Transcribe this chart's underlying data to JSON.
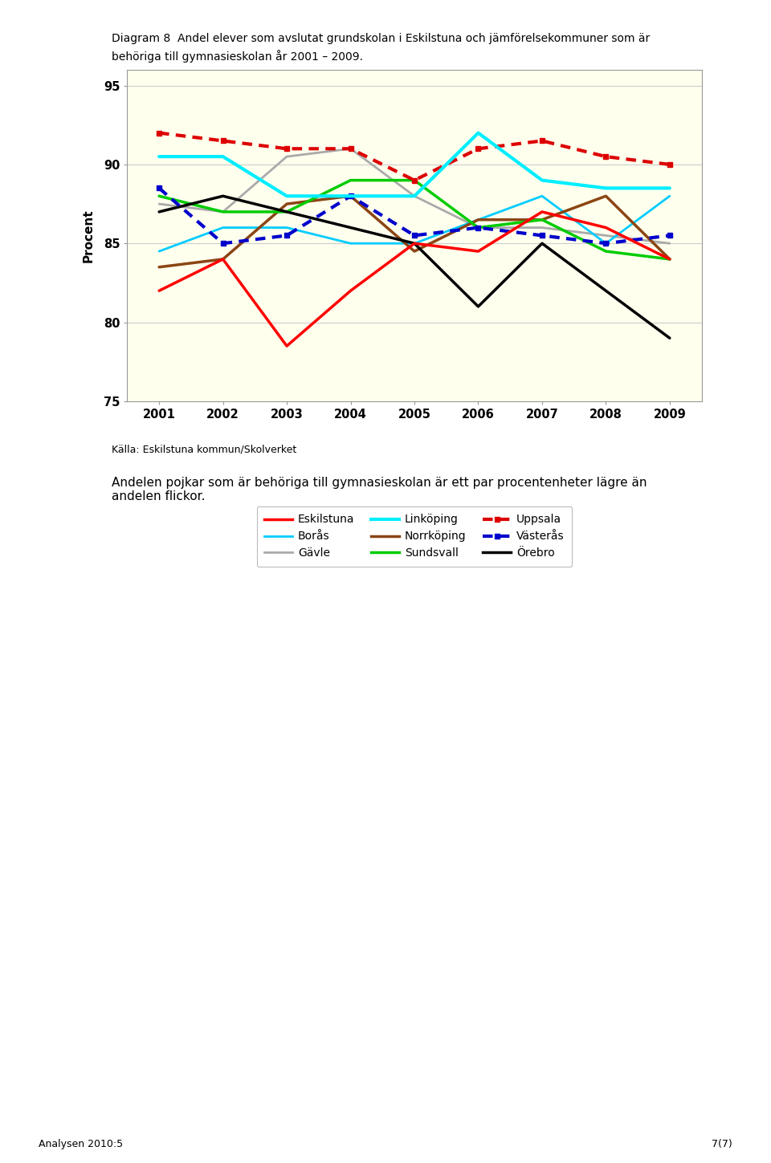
{
  "title_line1": "Diagram 8  Andel elever som avslutat grundskolan i Eskilstuna och jämförelsekommuner som är",
  "title_line2": "behöriga till gymnasieskolan år 2001 – 2009.",
  "ylabel": "Procent",
  "years": [
    2001,
    2002,
    2003,
    2004,
    2005,
    2006,
    2007,
    2008,
    2009
  ],
  "ylim": [
    75,
    96
  ],
  "yticks": [
    75,
    80,
    85,
    90,
    95
  ],
  "series": [
    {
      "name": "Eskilstuna",
      "data": [
        82.0,
        84.0,
        78.5,
        82.0,
        85.0,
        84.5,
        87.0,
        86.0,
        84.0
      ],
      "color": "#ff0000",
      "linestyle": "solid",
      "linewidth": 2.5
    },
    {
      "name": "Borås",
      "data": [
        84.5,
        86.0,
        86.0,
        85.0,
        85.0,
        86.5,
        88.0,
        85.0,
        88.0
      ],
      "color": "#00ccff",
      "linestyle": "solid",
      "linewidth": 2.0
    },
    {
      "name": "Gävle",
      "data": [
        87.5,
        87.0,
        90.5,
        91.0,
        88.0,
        86.0,
        86.0,
        85.5,
        85.0
      ],
      "color": "#aaaaaa",
      "linestyle": "solid",
      "linewidth": 2.0
    },
    {
      "name": "Linköping",
      "data": [
        90.5,
        90.5,
        88.0,
        88.0,
        88.0,
        92.0,
        89.0,
        88.5,
        88.5
      ],
      "color": "#00eeff",
      "linestyle": "solid",
      "linewidth": 3.0
    },
    {
      "name": "Norrköping",
      "data": [
        83.5,
        84.0,
        87.5,
        88.0,
        84.5,
        86.5,
        86.5,
        88.0,
        84.0
      ],
      "color": "#8B4513",
      "linestyle": "solid",
      "linewidth": 2.5
    },
    {
      "name": "Sundsvall",
      "data": [
        88.0,
        87.0,
        87.0,
        89.0,
        89.0,
        86.0,
        86.5,
        84.5,
        84.0
      ],
      "color": "#00cc00",
      "linestyle": "solid",
      "linewidth": 2.5
    },
    {
      "name": "Uppsala",
      "data": [
        92.0,
        91.5,
        91.0,
        91.0,
        89.0,
        91.0,
        91.5,
        90.5,
        90.0
      ],
      "color": "#dd0000",
      "linestyle": "dotted",
      "linewidth": 3.0,
      "marker": "s",
      "markersize": 5
    },
    {
      "name": "Västerås",
      "data": [
        88.5,
        85.0,
        85.5,
        88.0,
        85.5,
        86.0,
        85.5,
        85.0,
        85.5
      ],
      "color": "#0000cc",
      "linestyle": "dotted",
      "linewidth": 3.0,
      "marker": "s",
      "markersize": 5
    },
    {
      "name": "Örebro",
      "data": [
        87.0,
        88.0,
        87.0,
        86.0,
        85.0,
        81.0,
        85.0,
        82.0,
        79.0
      ],
      "color": "#000000",
      "linestyle": "solid",
      "linewidth": 2.5
    }
  ],
  "background_color": "#ffffee",
  "grid_color": "#cccccc",
  "outer_border_color": "#999999",
  "source_text": "Källa: Eskilstuna kommun/Skolverket",
  "body_text": "Andelen pojkar som är behöriga till gymnasieskolan är ett par procentenheter lägre än\nandelen flickor.",
  "footer_left": "Analysen 2010:5",
  "footer_right": "7(7)",
  "legend_order": [
    "Eskilstuna",
    "Borås",
    "Gävle",
    "Linköping",
    "Norrköping",
    "Sundsvall",
    "Uppsala",
    "Västerås",
    "Örebro"
  ]
}
